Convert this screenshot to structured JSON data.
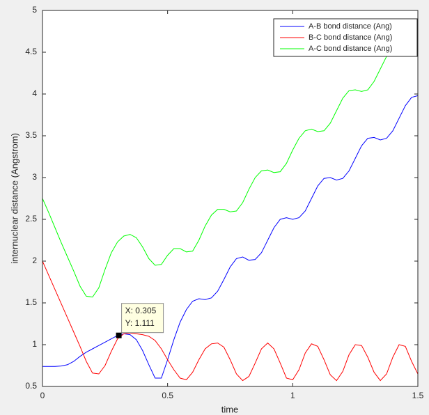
{
  "chart_data": {
    "type": "line",
    "xlabel": "time",
    "ylabel": "internuclear distance (Angstrom)",
    "x": [
      0,
      0.025,
      0.05,
      0.075,
      0.1,
      0.125,
      0.15,
      0.175,
      0.2,
      0.225,
      0.25,
      0.275,
      0.3,
      0.325,
      0.35,
      0.375,
      0.4,
      0.425,
      0.45,
      0.475,
      0.5,
      0.525,
      0.55,
      0.575,
      0.6,
      0.625,
      0.65,
      0.675,
      0.7,
      0.725,
      0.75,
      0.775,
      0.8,
      0.825,
      0.85,
      0.875,
      0.9,
      0.925,
      0.95,
      0.975,
      1.0,
      1.025,
      1.05,
      1.075,
      1.1,
      1.125,
      1.15,
      1.175,
      1.2,
      1.225,
      1.25,
      1.275,
      1.3,
      1.325,
      1.35,
      1.375,
      1.4,
      1.425,
      1.45,
      1.475,
      1.5
    ],
    "series": [
      {
        "name": "A-B bond distance (Ang)",
        "color": "#0000ff",
        "values": [
          0.74,
          0.74,
          0.74,
          0.745,
          0.76,
          0.8,
          0.86,
          0.91,
          0.95,
          0.99,
          1.03,
          1.07,
          1.11,
          1.13,
          1.12,
          1.06,
          0.93,
          0.76,
          0.6,
          0.6,
          0.82,
          1.06,
          1.27,
          1.42,
          1.52,
          1.55,
          1.54,
          1.56,
          1.64,
          1.78,
          1.93,
          2.03,
          2.05,
          2.01,
          2.02,
          2.1,
          2.25,
          2.4,
          2.5,
          2.52,
          2.5,
          2.52,
          2.6,
          2.75,
          2.9,
          2.99,
          3.0,
          2.97,
          2.99,
          3.08,
          3.23,
          3.38,
          3.47,
          3.48,
          3.45,
          3.47,
          3.56,
          3.71,
          3.86,
          3.96,
          3.98
        ]
      },
      {
        "name": "B-C bond distance (Ang)",
        "color": "#ff0000",
        "values": [
          2.0,
          1.83,
          1.66,
          1.49,
          1.32,
          1.15,
          0.98,
          0.8,
          0.66,
          0.65,
          0.75,
          0.92,
          1.07,
          1.13,
          1.14,
          1.13,
          1.12,
          1.1,
          1.05,
          0.95,
          0.82,
          0.7,
          0.6,
          0.58,
          0.67,
          0.82,
          0.95,
          1.01,
          1.02,
          0.97,
          0.82,
          0.65,
          0.57,
          0.62,
          0.78,
          0.95,
          1.02,
          0.95,
          0.78,
          0.6,
          0.58,
          0.7,
          0.9,
          1.01,
          0.98,
          0.82,
          0.64,
          0.57,
          0.68,
          0.88,
          1.0,
          0.99,
          0.85,
          0.67,
          0.57,
          0.65,
          0.85,
          1.0,
          0.98,
          0.8,
          0.65
        ]
      },
      {
        "name": "A-C bond distance (Ang)",
        "color": "#00ff00",
        "values": [
          2.75,
          2.58,
          2.4,
          2.22,
          2.05,
          1.88,
          1.7,
          1.58,
          1.57,
          1.68,
          1.9,
          2.1,
          2.23,
          2.3,
          2.32,
          2.28,
          2.17,
          2.03,
          1.95,
          1.96,
          2.07,
          2.15,
          2.15,
          2.11,
          2.12,
          2.25,
          2.42,
          2.55,
          2.62,
          2.62,
          2.59,
          2.6,
          2.7,
          2.86,
          3.0,
          3.08,
          3.09,
          3.06,
          3.07,
          3.17,
          3.33,
          3.47,
          3.56,
          3.58,
          3.55,
          3.56,
          3.65,
          3.8,
          3.95,
          4.04,
          4.05,
          4.03,
          4.05,
          4.15,
          4.3,
          4.45,
          4.52,
          4.52,
          4.52,
          4.56,
          4.6
        ]
      }
    ],
    "xlim": [
      0,
      1.5
    ],
    "xticks": [
      0,
      0.5,
      1,
      1.5
    ],
    "ylim": [
      0.5,
      5
    ],
    "yticks": [
      0.5,
      1,
      1.5,
      2,
      2.5,
      3,
      3.5,
      4,
      4.5,
      5
    ],
    "grid": false,
    "legend": "top-right",
    "datatip": {
      "x": 0.305,
      "y": 1.111,
      "labels": [
        "X: 0.305",
        "Y: 1.111"
      ]
    }
  }
}
